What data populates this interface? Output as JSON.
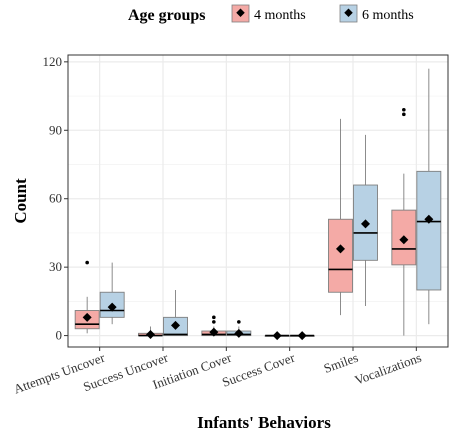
{
  "chart_data": {
    "type": "boxplot",
    "title": "",
    "xlabel": "Infants' Behaviors",
    "ylabel": "Count",
    "ylim": [
      -5,
      123
    ],
    "yticks": [
      0,
      30,
      60,
      90,
      120
    ],
    "grid": true,
    "legend": {
      "title": "Age groups",
      "placement": "top",
      "entries": [
        "4 months",
        "6 months"
      ]
    },
    "colors": {
      "4 months": "#f4aaa6",
      "6 months": "#b7d1e4",
      "box_stroke": "#7f7f7f",
      "grid": "#ebebeb",
      "panel_border": "#333333"
    },
    "categories": [
      "Attempts Uncover",
      "Success Uncover",
      "Initiation Cover",
      "Success Cover",
      "Smiles",
      "Vocalizations"
    ],
    "series": [
      {
        "name": "4 months",
        "boxes": [
          {
            "lower_whisker": 1,
            "q1": 3,
            "median": 5,
            "q3": 11,
            "upper_whisker": 17,
            "mean": 8,
            "outliers": [
              32
            ]
          },
          {
            "lower_whisker": 0,
            "q1": 0,
            "median": 0,
            "q3": 1,
            "upper_whisker": 4,
            "mean": 0.5,
            "outliers": []
          },
          {
            "lower_whisker": 0,
            "q1": 0,
            "median": 0.5,
            "q3": 2,
            "upper_whisker": 4,
            "mean": 1.5,
            "outliers": [
              6,
              8
            ]
          },
          {
            "lower_whisker": 0,
            "q1": 0,
            "median": 0,
            "q3": 0,
            "upper_whisker": 0,
            "mean": 0,
            "outliers": []
          },
          {
            "lower_whisker": 9,
            "q1": 19,
            "median": 29,
            "q3": 51,
            "upper_whisker": 95,
            "mean": 38,
            "outliers": []
          },
          {
            "lower_whisker": 0,
            "q1": 31,
            "median": 38,
            "q3": 55,
            "upper_whisker": 71,
            "mean": 42,
            "outliers": [
              97,
              99
            ]
          }
        ]
      },
      {
        "name": "6 months",
        "boxes": [
          {
            "lower_whisker": 5,
            "q1": 8,
            "median": 11,
            "q3": 19,
            "upper_whisker": 32,
            "mean": 12.5,
            "outliers": []
          },
          {
            "lower_whisker": 0,
            "q1": 0,
            "median": 0.5,
            "q3": 8,
            "upper_whisker": 20,
            "mean": 4.5,
            "outliers": []
          },
          {
            "lower_whisker": 0,
            "q1": 0,
            "median": 0.5,
            "q3": 2,
            "upper_whisker": 4,
            "mean": 1,
            "outliers": [
              6
            ]
          },
          {
            "lower_whisker": 0,
            "q1": 0,
            "median": 0,
            "q3": 0,
            "upper_whisker": 0,
            "mean": 0,
            "outliers": []
          },
          {
            "lower_whisker": 13,
            "q1": 33,
            "median": 45,
            "q3": 66,
            "upper_whisker": 88,
            "mean": 49,
            "outliers": []
          },
          {
            "lower_whisker": 5,
            "q1": 20,
            "median": 50,
            "q3": 72,
            "upper_whisker": 117,
            "mean": 51,
            "outliers": []
          }
        ]
      }
    ]
  }
}
